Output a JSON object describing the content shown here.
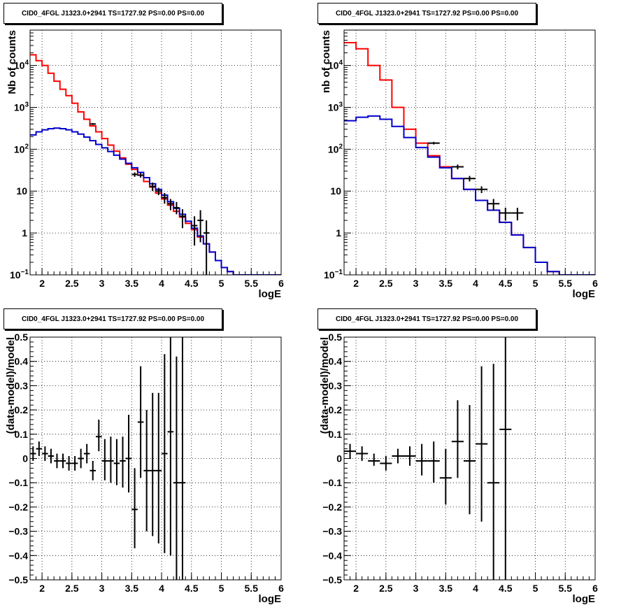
{
  "pads": [
    {
      "title": "CID0_4FGL J1323.0+2941 TS=1727.92 PS=0.00 PS=0.00",
      "chart_data": {
        "type": "line",
        "xlabel": "logE",
        "ylabel": "Nb of counts",
        "xlim": [
          1.8,
          6.0
        ],
        "ylim": [
          0.1,
          70000
        ],
        "yscale": "log",
        "grid": true,
        "xticks": [
          "2",
          "2.5",
          "3",
          "3.5",
          "4",
          "4.5",
          "5",
          "5.5",
          "6"
        ],
        "series": [
          {
            "color": "#ff0000",
            "style": "step",
            "binwidth": 0.1,
            "x": [
              1.8,
              1.9,
              2.0,
              2.1,
              2.2,
              2.3,
              2.4,
              2.5,
              2.6,
              2.7,
              2.8,
              2.9,
              3.0,
              3.1,
              3.2,
              3.3,
              3.4,
              3.5,
              3.6,
              3.7,
              3.8,
              3.9,
              4.0,
              4.1,
              4.2,
              4.3,
              4.4,
              4.5,
              4.6,
              4.7,
              4.8,
              4.9,
              5.0,
              5.1,
              5.2,
              5.3,
              5.4,
              5.5,
              5.6,
              5.7,
              5.8,
              5.9
            ],
            "y": [
              18000,
              13000,
              10000,
              6500,
              4200,
              2700,
              1900,
              1250,
              780,
              520,
              360,
              260,
              180,
              125,
              90,
              62,
              44,
              33,
              24,
              17,
              12.5,
              9,
              6.5,
              4.6,
              3.3,
              2.4,
              1.7,
              1.2,
              0.8,
              0.55,
              0.35,
              0.22,
              0.15,
              0.12,
              0.1,
              0.1,
              0.1,
              0.1,
              0.1,
              0.1,
              0.1,
              0.1
            ]
          },
          {
            "color": "#0000cc",
            "style": "step",
            "binwidth": 0.1,
            "x": [
              1.8,
              1.9,
              2.0,
              2.1,
              2.2,
              2.3,
              2.4,
              2.5,
              2.6,
              2.7,
              2.8,
              2.9,
              3.0,
              3.1,
              3.2,
              3.3,
              3.4,
              3.5,
              3.6,
              3.7,
              3.8,
              3.9,
              4.0,
              4.1,
              4.2,
              4.3,
              4.4,
              4.5,
              4.6,
              4.7,
              4.8,
              4.9,
              5.0,
              5.1,
              5.2,
              5.3,
              5.4,
              5.5,
              5.6,
              5.7,
              5.8,
              5.9
            ],
            "y": [
              220,
              260,
              290,
              310,
              320,
              310,
              290,
              260,
              230,
              195,
              160,
              130,
              108,
              88,
              72,
              58,
              46,
              36,
              28,
              21,
              15,
              11,
              8,
              5.6,
              3.9,
              2.8,
              1.9,
              1.3,
              0.85,
              0.55,
              0.35,
              0.22,
              0.15,
              0.12,
              0.1,
              0.1,
              0.1,
              0.1,
              0.1,
              0.1,
              0.1,
              0.1
            ]
          },
          {
            "color": "#000000",
            "style": "points",
            "binwidth": 0.1,
            "x": [
              2.85,
              3.55,
              3.65,
              3.85,
              3.95,
              4.05,
              4.15,
              4.25,
              4.35,
              4.55,
              4.65,
              4.75
            ],
            "y": [
              400,
              25,
              24,
              13,
              10,
              7,
              5,
              4,
              2.5,
              1.5,
              2,
              1
            ],
            "ylo": [
              380,
              22,
              21,
              10,
              8,
              5,
              3.5,
              2.8,
              1.3,
              0.5,
              0.6,
              0.1
            ],
            "yhi": [
              420,
              28,
              27,
              16,
              12,
              9,
              6.5,
              5.5,
              3.7,
              2.5,
              3.5,
              2
            ]
          }
        ]
      }
    },
    {
      "title": "CID0_4FGL J1323.0+2941 TS=1727.92 PS=0.00 PS=0.00",
      "chart_data": {
        "type": "line",
        "xlabel": "logE",
        "ylabel": "nb of counts",
        "xlim": [
          1.8,
          6.0
        ],
        "ylim": [
          0.1,
          70000
        ],
        "yscale": "log",
        "grid": true,
        "xticks": [
          "2",
          "2.5",
          "3",
          "3.5",
          "4",
          "4.5",
          "5",
          "5.5",
          "6"
        ],
        "series": [
          {
            "color": "#ff0000",
            "style": "step",
            "binwidth": 0.2,
            "x": [
              1.8,
              2.0,
              2.2,
              2.4,
              2.6,
              2.8,
              3.0,
              3.2,
              3.4,
              3.6,
              3.8,
              4.0,
              4.2,
              4.4,
              4.6,
              4.8,
              5.0,
              5.2,
              5.4,
              5.6,
              5.8
            ],
            "y": [
              35000,
              25000,
              10000,
              4500,
              1000,
              300,
              140,
              70,
              38,
              20,
              11,
              6,
              3.5,
              1.8,
              0.9,
              0.45,
              0.2,
              0.12,
              0.1,
              0.1,
              0.1
            ]
          },
          {
            "color": "#0000cc",
            "style": "step",
            "binwidth": 0.2,
            "x": [
              1.8,
              2.0,
              2.2,
              2.4,
              2.6,
              2.8,
              3.0,
              3.2,
              3.4,
              3.6,
              3.8,
              4.0,
              4.2,
              4.4,
              4.6,
              4.8,
              5.0,
              5.2,
              5.4,
              5.6,
              5.8
            ],
            "y": [
              480,
              580,
              620,
              520,
              350,
              190,
              110,
              65,
              36,
              20,
              11,
              6,
              3.5,
              1.8,
              0.9,
              0.45,
              0.2,
              0.12,
              0.1,
              0.1,
              0.1
            ]
          },
          {
            "color": "#000000",
            "style": "points",
            "binwidth": 0.2,
            "x": [
              3.3,
              3.7,
              3.9,
              4.1,
              4.3,
              4.5,
              4.7
            ],
            "y": [
              140,
              38,
              20,
              11,
              5,
              3,
              3
            ],
            "ylo": [
              130,
              33,
              17,
              9,
              3.5,
              2,
              2
            ],
            "yhi": [
              150,
              43,
              23,
              13,
              6.5,
              4,
              4
            ]
          }
        ]
      }
    },
    {
      "title": "CID0_4FGL J1323.0+2941 TS=1727.92 PS=0.00 PS=0.00",
      "chart_data": {
        "type": "scatter",
        "xlabel": "logE",
        "ylabel": "(data-model)/model",
        "xlim": [
          1.8,
          6.0
        ],
        "ylim": [
          -0.5,
          0.5
        ],
        "yscale": "linear",
        "grid": true,
        "xticks": [
          "2",
          "2.5",
          "3",
          "3.5",
          "4",
          "4.5",
          "5",
          "5.5",
          "6"
        ],
        "yticks": [
          "-0.5",
          "-0.4",
          "-0.3",
          "-0.2",
          "-0.1",
          "0",
          "0.1",
          "0.2",
          "0.3",
          "0.4",
          "0.5"
        ],
        "series": [
          {
            "color": "#000000",
            "style": "points",
            "binwidth": 0.1,
            "x": [
              1.85,
              1.95,
              2.05,
              2.15,
              2.25,
              2.35,
              2.45,
              2.55,
              2.65,
              2.75,
              2.85,
              2.95,
              3.05,
              3.15,
              3.25,
              3.35,
              3.45,
              3.55,
              3.65,
              3.75,
              3.85,
              3.95,
              4.05,
              4.15,
              4.25,
              4.35
            ],
            "y": [
              0.02,
              0.04,
              0.02,
              0.01,
              -0.01,
              -0.01,
              -0.02,
              -0.02,
              0.0,
              0.02,
              -0.05,
              0.09,
              -0.01,
              -0.01,
              -0.02,
              -0.01,
              0.0,
              -0.21,
              0.15,
              -0.05,
              -0.05,
              -0.05,
              0.02,
              0.11,
              -0.1,
              -0.1
            ],
            "ylo": [
              -0.01,
              0.01,
              -0.01,
              -0.02,
              -0.04,
              -0.04,
              -0.05,
              -0.05,
              -0.04,
              -0.02,
              -0.09,
              0.03,
              -0.09,
              -0.1,
              -0.11,
              -0.12,
              -0.14,
              -0.37,
              -0.08,
              -0.3,
              -0.32,
              -0.35,
              -0.39,
              -0.4,
              -0.6,
              -0.6
            ],
            "yhi": [
              0.05,
              0.07,
              0.05,
              0.04,
              0.02,
              0.02,
              0.01,
              0.01,
              0.04,
              0.06,
              -0.01,
              0.16,
              0.08,
              0.09,
              0.08,
              0.09,
              0.18,
              -0.04,
              0.38,
              0.2,
              0.27,
              0.27,
              0.43,
              0.6,
              0.42,
              0.6
            ]
          }
        ]
      }
    },
    {
      "title": "CID0_4FGL J1323.0+2941 TS=1727.92 PS=0.00 PS=0.00",
      "chart_data": {
        "type": "scatter",
        "xlabel": "logE",
        "ylabel": "(data-model)/model",
        "xlim": [
          1.8,
          6.0
        ],
        "ylim": [
          -0.5,
          0.5
        ],
        "yscale": "linear",
        "grid": true,
        "xticks": [
          "2",
          "2.5",
          "3",
          "3.5",
          "4",
          "4.5",
          "5",
          "5.5",
          "6"
        ],
        "yticks": [
          "-0.5",
          "-0.4",
          "-0.3",
          "-0.2",
          "-0.1",
          "0",
          "0.1",
          "0.2",
          "0.3",
          "0.4",
          "0.5"
        ],
        "series": [
          {
            "color": "#000000",
            "style": "points",
            "binwidth": 0.2,
            "x": [
              1.9,
              2.1,
              2.3,
              2.5,
              2.7,
              2.9,
              3.1,
              3.3,
              3.5,
              3.7,
              3.9,
              4.1,
              4.3,
              4.5
            ],
            "y": [
              0.03,
              0.02,
              -0.01,
              -0.02,
              0.01,
              0.01,
              -0.01,
              -0.01,
              -0.08,
              0.07,
              -0.01,
              0.06,
              -0.1,
              0.12
            ],
            "ylo": [
              0.0,
              -0.01,
              -0.03,
              -0.05,
              -0.02,
              -0.03,
              -0.07,
              -0.1,
              -0.19,
              -0.08,
              -0.23,
              -0.26,
              -0.6,
              -0.6
            ],
            "yhi": [
              0.06,
              0.05,
              0.02,
              0.01,
              0.04,
              0.05,
              0.06,
              0.07,
              0.04,
              0.24,
              0.22,
              0.38,
              0.39,
              0.6
            ]
          }
        ]
      }
    }
  ]
}
